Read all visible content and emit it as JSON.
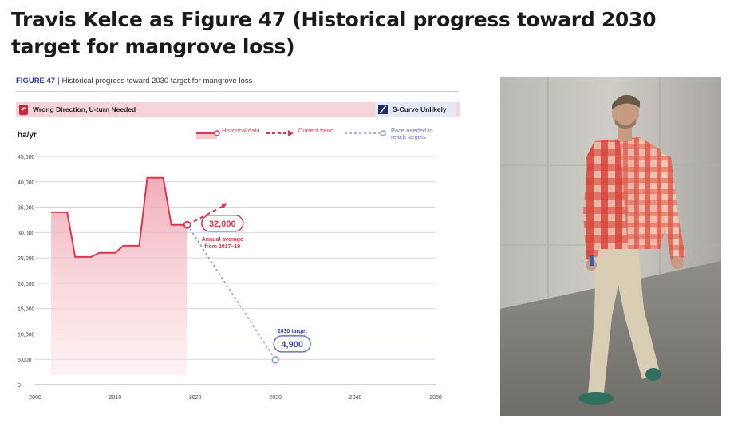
{
  "meme": {
    "title": "Travis Kelce as Figure 47 (Historical progress toward 2030 target for mangrove loss)"
  },
  "figure": {
    "number": "FIGURE 47",
    "title": "Historical progress toward 2030 target for mangrove loss",
    "status_left": "Wrong Direction, U-turn Needed",
    "status_right": "S-Curve Unlikely",
    "unit": "ha/yr"
  },
  "legend": {
    "historical": "Historical data",
    "current": "Current trend",
    "pace": "Pace needed to reach targets"
  },
  "annotations": {
    "current_value": "32,000",
    "current_note_1": "Annual average",
    "current_note_2": "from 2017–19",
    "target_label": "2030 target",
    "target_value": "4,900"
  },
  "colors": {
    "historical": "#d9384f",
    "fill": "#f2b6c0",
    "pace": "#8e95d6",
    "accent": "#2b3a8f",
    "status_band": "#f6d3d9"
  },
  "photo": {
    "subject": "man walking in red plaid shirt and khaki pants in concrete tunnel",
    "icon": "person-photo"
  },
  "chart_data": {
    "type": "area",
    "title": "Historical progress toward 2030 target for mangrove loss",
    "ylabel": "ha/yr",
    "xlabel": "",
    "xlim": [
      2000,
      2050
    ],
    "ylim": [
      0,
      45000
    ],
    "x_ticks": [
      2000,
      2010,
      2020,
      2030,
      2040,
      2050
    ],
    "y_ticks": [
      0,
      5000,
      10000,
      15000,
      20000,
      25000,
      30000,
      35000,
      40000,
      45000
    ],
    "grid": true,
    "legend_position": "top-right",
    "series": [
      {
        "name": "Historical data",
        "style": "solid-area",
        "points": [
          [
            2002,
            34000
          ],
          [
            2004,
            34000
          ],
          [
            2005,
            25200
          ],
          [
            2007,
            25200
          ],
          [
            2008,
            26000
          ],
          [
            2010,
            26000
          ],
          [
            2011,
            27400
          ],
          [
            2013,
            27400
          ],
          [
            2014,
            40800
          ],
          [
            2016,
            40800
          ],
          [
            2017,
            31500
          ],
          [
            2019,
            31500
          ]
        ]
      },
      {
        "name": "Current trend",
        "style": "dashed",
        "points": [
          [
            2019,
            31500
          ],
          [
            2024,
            35800
          ]
        ]
      },
      {
        "name": "Pace needed to reach targets",
        "style": "dotted",
        "points": [
          [
            2019,
            31500
          ],
          [
            2030,
            4900
          ]
        ]
      }
    ]
  }
}
